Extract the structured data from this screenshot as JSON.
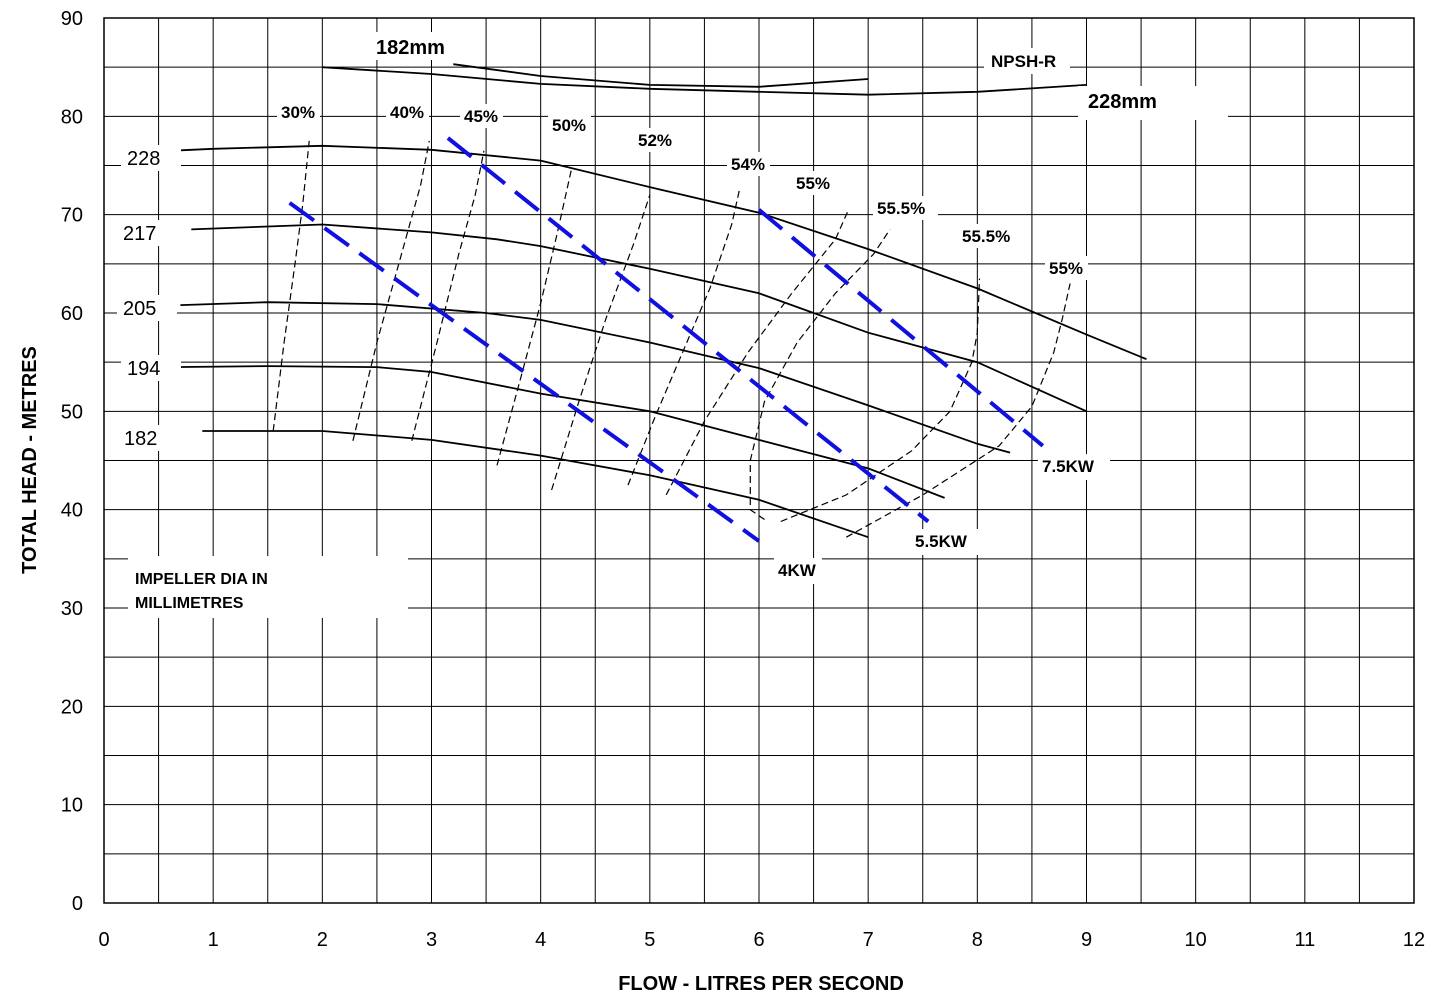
{
  "chart_data": {
    "type": "line",
    "xlabel": "FLOW - LITRES PER SECOND",
    "ylabel": "TOTAL HEAD - METRES",
    "xlim": [
      0,
      12
    ],
    "ylim": [
      0,
      90
    ],
    "x_ticks": [
      "0",
      "1",
      "2",
      "3",
      "4",
      "5",
      "6",
      "7",
      "8",
      "9",
      "10",
      "11",
      "12"
    ],
    "y_ticks": [
      "0",
      "10",
      "20",
      "30",
      "40",
      "50",
      "60",
      "70",
      "80",
      "90"
    ],
    "grid": "on",
    "note": "IMPELLER DIA IN MILLIMETRES",
    "head_curves": [
      {
        "name": "228",
        "points": [
          [
            0.6,
            76.5
          ],
          [
            1,
            76.7
          ],
          [
            2,
            77.0
          ],
          [
            3,
            76.6
          ],
          [
            4,
            75.5
          ],
          [
            5,
            72.8
          ],
          [
            6,
            70.2
          ],
          [
            7,
            66.5
          ],
          [
            8,
            62.5
          ],
          [
            9,
            57.8
          ],
          [
            9.55,
            55.3
          ]
        ]
      },
      {
        "name": "217",
        "points": [
          [
            0.8,
            68.5
          ],
          [
            1.5,
            68.8
          ],
          [
            2,
            69.0
          ],
          [
            3,
            68.2
          ],
          [
            3.6,
            67.5
          ],
          [
            4,
            66.8
          ],
          [
            5,
            64.5
          ],
          [
            6,
            62.0
          ],
          [
            7,
            58.0
          ],
          [
            8,
            55.0
          ],
          [
            9,
            50.0
          ]
        ]
      },
      {
        "name": "205",
        "points": [
          [
            0.7,
            60.8
          ],
          [
            1.5,
            61.1
          ],
          [
            2.5,
            60.9
          ],
          [
            3.5,
            60.0
          ],
          [
            4,
            59.3
          ],
          [
            5,
            57.0
          ],
          [
            6,
            54.4
          ],
          [
            7,
            50.6
          ],
          [
            8,
            46.7
          ],
          [
            8.3,
            45.8
          ]
        ]
      },
      {
        "name": "194",
        "points": [
          [
            0.6,
            54.5
          ],
          [
            1.5,
            54.6
          ],
          [
            2.5,
            54.5
          ],
          [
            3,
            54.0
          ],
          [
            4,
            51.8
          ],
          [
            5,
            50.0
          ],
          [
            6,
            47.1
          ],
          [
            7,
            44.2
          ],
          [
            7.7,
            41.2
          ]
        ]
      },
      {
        "name": "182",
        "points": [
          [
            0.9,
            48.0
          ],
          [
            2,
            48.0
          ],
          [
            3,
            47.1
          ],
          [
            4,
            45.5
          ],
          [
            5,
            43.5
          ],
          [
            6,
            41.0
          ],
          [
            7,
            37.2
          ]
        ]
      }
    ],
    "npsh_curves": [
      {
        "name": "182mm",
        "points": [
          [
            3.2,
            85.3
          ],
          [
            4,
            84.1
          ],
          [
            5,
            83.2
          ],
          [
            6,
            83.0
          ],
          [
            7,
            83.8
          ]
        ]
      },
      {
        "name": "228mm",
        "points": [
          [
            2,
            85.0
          ],
          [
            3,
            84.3
          ],
          [
            4,
            83.3
          ],
          [
            5,
            82.8
          ],
          [
            6,
            82.5
          ],
          [
            7,
            82.2
          ],
          [
            8,
            82.5
          ],
          [
            9,
            83.2
          ]
        ]
      }
    ],
    "npsh_label": "NPSH-R",
    "efficiency_curves": [
      {
        "label": "30%",
        "points": [
          [
            1.55,
            48.0
          ],
          [
            1.65,
            57.0
          ],
          [
            1.75,
            65.0
          ],
          [
            1.82,
            71.0
          ],
          [
            1.88,
            77.5
          ]
        ]
      },
      {
        "label": "40%",
        "points": [
          [
            2.28,
            47.0
          ],
          [
            2.5,
            57.0
          ],
          [
            2.7,
            65.0
          ],
          [
            2.9,
            73.0
          ],
          [
            2.98,
            77.5
          ]
        ]
      },
      {
        "label": "45%",
        "points": [
          [
            2.82,
            47.0
          ],
          [
            3.05,
            57.0
          ],
          [
            3.25,
            66.0
          ],
          [
            3.4,
            72.0
          ],
          [
            3.48,
            76.5
          ]
        ]
      },
      {
        "label": "50%",
        "points": [
          [
            3.6,
            44.5
          ],
          [
            3.82,
            53.5
          ],
          [
            4.0,
            61.0
          ],
          [
            4.15,
            68.0
          ],
          [
            4.28,
            74.5
          ]
        ]
      },
      {
        "label": "52%",
        "points": [
          [
            4.1,
            42.0
          ],
          [
            4.35,
            51.0
          ],
          [
            4.6,
            59.5
          ],
          [
            4.85,
            67.0
          ],
          [
            5.0,
            72.0
          ]
        ]
      },
      {
        "label": "54%",
        "points": [
          [
            4.8,
            42.5
          ],
          [
            5.05,
            49.5
          ],
          [
            5.3,
            56.0
          ],
          [
            5.55,
            62.5
          ],
          [
            5.75,
            69.0
          ],
          [
            5.82,
            72.5
          ]
        ]
      },
      {
        "label": "55%",
        "points": [
          [
            5.15,
            41.5
          ],
          [
            5.5,
            49.0
          ],
          [
            5.9,
            56.0
          ],
          [
            6.3,
            62.0
          ],
          [
            6.7,
            67.5
          ],
          [
            6.82,
            70.5
          ]
        ]
      },
      {
        "label": "55.5%",
        "points": [
          [
            6.05,
            39.0
          ],
          [
            5.92,
            40.0
          ],
          [
            5.92,
            45.0
          ],
          [
            6.05,
            51.0
          ],
          [
            6.35,
            57.0
          ],
          [
            6.7,
            62.0
          ],
          [
            7.05,
            66.0
          ],
          [
            7.2,
            68.5
          ]
        ]
      },
      {
        "label": "55.5%",
        "points": [
          [
            6.2,
            38.8
          ],
          [
            6.8,
            41.5
          ],
          [
            7.4,
            46.0
          ],
          [
            7.75,
            50.0
          ],
          [
            7.95,
            55.0
          ],
          [
            8.0,
            58.0
          ],
          [
            8.02,
            63.5
          ]
        ]
      },
      {
        "label": "55%",
        "points": [
          [
            6.8,
            37.2
          ],
          [
            7.5,
            41.5
          ],
          [
            8.2,
            46.5
          ],
          [
            8.5,
            50.5
          ],
          [
            8.7,
            56.0
          ],
          [
            8.78,
            59.5
          ],
          [
            8.85,
            63.0
          ]
        ]
      }
    ],
    "power_lines": [
      {
        "label": "4KW",
        "points": [
          [
            1.7,
            71.2
          ],
          [
            6.0,
            36.8
          ]
        ]
      },
      {
        "label": "5.5KW",
        "points": [
          [
            3.15,
            77.8
          ],
          [
            7.55,
            38.8
          ]
        ]
      },
      {
        "label": "7.5KW",
        "points": [
          [
            6.0,
            70.5
          ],
          [
            8.6,
            46.5
          ]
        ]
      }
    ],
    "colors": {
      "power": "#1010e0",
      "curves": "#000000",
      "grid": "#000000"
    }
  }
}
